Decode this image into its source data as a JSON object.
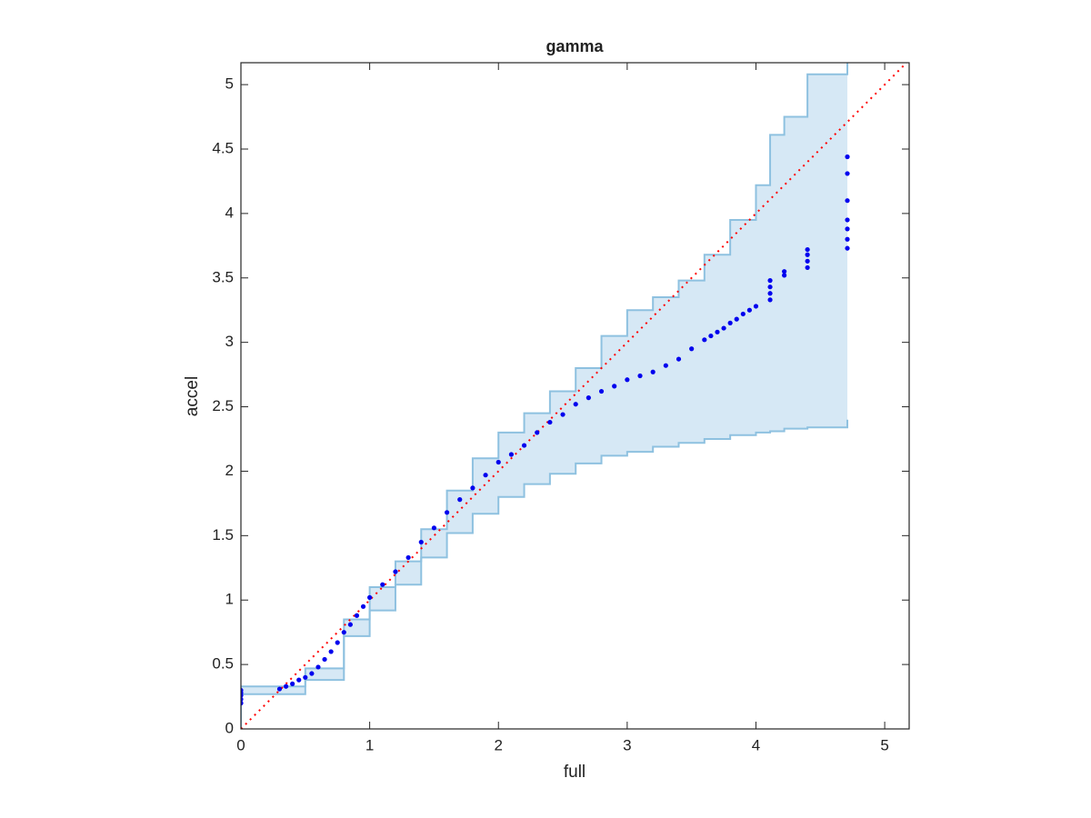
{
  "chart_data": {
    "type": "scatter",
    "title": "gamma",
    "xlabel": "full",
    "ylabel": "accel",
    "xlim": [
      0,
      5.19
    ],
    "ylim": [
      0,
      5.17
    ],
    "xticks": [
      0,
      1,
      2,
      3,
      4,
      5
    ],
    "yticks": [
      0,
      0.5,
      1,
      1.5,
      2,
      2.5,
      3,
      3.5,
      4,
      4.5,
      5
    ],
    "points": {
      "color": "#0000ee",
      "x": [
        0,
        0,
        0,
        0,
        0,
        0.3,
        0.35,
        0.4,
        0.45,
        0.5,
        0.55,
        0.6,
        0.65,
        0.7,
        0.75,
        0.8,
        0.85,
        0.9,
        0.95,
        1.0,
        1.1,
        1.2,
        1.3,
        1.4,
        1.5,
        1.6,
        1.7,
        1.8,
        1.9,
        2.0,
        2.1,
        2.2,
        2.3,
        2.4,
        2.5,
        2.6,
        2.7,
        2.8,
        2.9,
        3.0,
        3.1,
        3.2,
        3.3,
        3.4,
        3.5,
        3.6,
        3.65,
        3.7,
        3.75,
        3.8,
        3.85,
        3.9,
        3.95,
        4.0,
        4.11,
        4.11,
        4.11,
        4.11,
        4.22,
        4.22,
        4.4,
        4.4,
        4.4,
        4.4,
        4.71,
        4.71,
        4.71,
        4.71,
        4.71,
        4.71,
        4.71
      ],
      "y": [
        0.2,
        0.23,
        0.26,
        0.28,
        0.3,
        0.31,
        0.33,
        0.35,
        0.38,
        0.4,
        0.43,
        0.48,
        0.54,
        0.6,
        0.67,
        0.75,
        0.81,
        0.88,
        0.95,
        1.02,
        1.12,
        1.22,
        1.33,
        1.45,
        1.56,
        1.68,
        1.78,
        1.87,
        1.97,
        2.07,
        2.13,
        2.2,
        2.3,
        2.38,
        2.44,
        2.52,
        2.57,
        2.62,
        2.66,
        2.71,
        2.74,
        2.77,
        2.82,
        2.87,
        2.95,
        3.02,
        3.05,
        3.08,
        3.11,
        3.15,
        3.18,
        3.22,
        3.25,
        3.28,
        3.33,
        3.38,
        3.43,
        3.48,
        3.52,
        3.55,
        3.58,
        3.63,
        3.68,
        3.72,
        3.73,
        3.8,
        3.88,
        3.95,
        4.1,
        4.31,
        4.44
      ]
    },
    "band": {
      "color": "#8ec1e0",
      "fill": "#d6e8f5",
      "x": [
        0,
        0.3,
        0.5,
        0.8,
        1.0,
        1.2,
        1.4,
        1.6,
        1.8,
        2.0,
        2.2,
        2.4,
        2.6,
        2.8,
        3.0,
        3.2,
        3.4,
        3.6,
        3.8,
        4.0,
        4.11,
        4.22,
        4.4,
        4.71
      ],
      "upper": [
        0.33,
        0.33,
        0.47,
        0.85,
        1.1,
        1.3,
        1.55,
        1.85,
        2.1,
        2.3,
        2.45,
        2.62,
        2.8,
        3.05,
        3.25,
        3.35,
        3.48,
        3.68,
        3.95,
        4.22,
        4.61,
        4.75,
        5.08,
        5.17
      ],
      "lower": [
        0.27,
        0.27,
        0.38,
        0.72,
        0.92,
        1.12,
        1.33,
        1.52,
        1.67,
        1.8,
        1.9,
        1.98,
        2.06,
        2.12,
        2.15,
        2.19,
        2.22,
        2.25,
        2.28,
        2.3,
        2.31,
        2.33,
        2.34,
        2.4
      ]
    },
    "reference_line": {
      "color": "#ff0000",
      "x": [
        0,
        5.19
      ],
      "y": [
        0,
        5.19
      ]
    }
  }
}
